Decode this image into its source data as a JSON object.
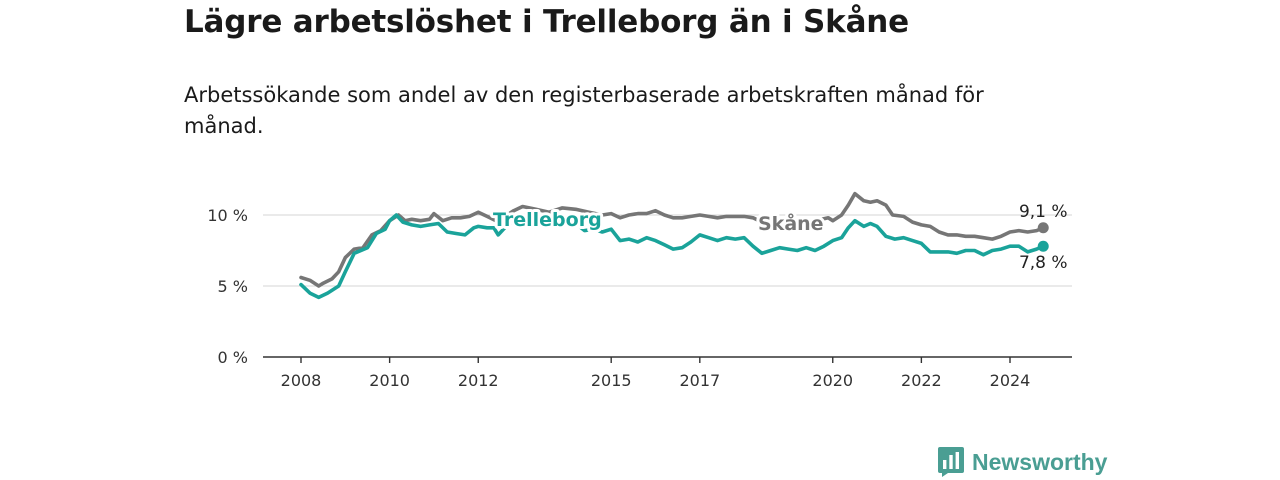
{
  "title": "Lägre arbetslöshet i Trelleborg än i Skåne",
  "subtitle": "Arbetssökande som andel av den registerbaserade arbetskraften månad för månad.",
  "brand": {
    "name": "Newsworthy",
    "color": "#4a9e93"
  },
  "chart_data": {
    "type": "line",
    "title": "Lägre arbetslöshet i Trelleborg än i Skåne",
    "xlabel": "",
    "ylabel": "",
    "xlim": [
      2008,
      2025
    ],
    "ylim": [
      0,
      10
    ],
    "grid": true,
    "y_ticks": [
      {
        "value": 0,
        "label": "0 %"
      },
      {
        "value": 5,
        "label": "5 %"
      },
      {
        "value": 10,
        "label": "10 %"
      }
    ],
    "x_ticks": [
      {
        "value": 2008,
        "label": "2008"
      },
      {
        "value": 2010,
        "label": "2010"
      },
      {
        "value": 2012,
        "label": "2012"
      },
      {
        "value": 2015,
        "label": "2015"
      },
      {
        "value": 2017,
        "label": "2017"
      },
      {
        "value": 2020,
        "label": "2020"
      },
      {
        "value": 2022,
        "label": "2022"
      },
      {
        "value": 2024,
        "label": "2024"
      }
    ],
    "series": [
      {
        "name": "Skåne",
        "label": "Skåne",
        "color": "#767676",
        "end_label": "9,1 %",
        "points": [
          [
            2008.0,
            5.6
          ],
          [
            2008.2,
            5.4
          ],
          [
            2008.4,
            5.0
          ],
          [
            2008.5,
            5.2
          ],
          [
            2008.7,
            5.5
          ],
          [
            2008.85,
            6.0
          ],
          [
            2009.0,
            7.0
          ],
          [
            2009.2,
            7.6
          ],
          [
            2009.4,
            7.7
          ],
          [
            2009.6,
            8.6
          ],
          [
            2009.8,
            8.9
          ],
          [
            2010.0,
            9.6
          ],
          [
            2010.2,
            10.0
          ],
          [
            2010.35,
            9.6
          ],
          [
            2010.5,
            9.7
          ],
          [
            2010.7,
            9.6
          ],
          [
            2010.9,
            9.7
          ],
          [
            2011.0,
            10.1
          ],
          [
            2011.2,
            9.6
          ],
          [
            2011.4,
            9.8
          ],
          [
            2011.6,
            9.8
          ],
          [
            2011.8,
            9.9
          ],
          [
            2012.0,
            10.2
          ],
          [
            2012.2,
            9.9
          ],
          [
            2012.4,
            9.6
          ],
          [
            2012.6,
            9.9
          ],
          [
            2012.8,
            10.3
          ],
          [
            2013.0,
            10.6
          ],
          [
            2013.3,
            10.4
          ],
          [
            2013.6,
            10.2
          ],
          [
            2013.9,
            10.5
          ],
          [
            2014.2,
            10.4
          ],
          [
            2014.5,
            10.2
          ],
          [
            2014.8,
            10.0
          ],
          [
            2015.0,
            10.1
          ],
          [
            2015.2,
            9.8
          ],
          [
            2015.4,
            10.0
          ],
          [
            2015.6,
            10.1
          ],
          [
            2015.8,
            10.1
          ],
          [
            2016.0,
            10.3
          ],
          [
            2016.2,
            10.0
          ],
          [
            2016.4,
            9.8
          ],
          [
            2016.6,
            9.8
          ],
          [
            2016.8,
            9.9
          ],
          [
            2017.0,
            10.0
          ],
          [
            2017.2,
            9.9
          ],
          [
            2017.4,
            9.8
          ],
          [
            2017.6,
            9.9
          ],
          [
            2017.8,
            9.9
          ],
          [
            2018.0,
            9.9
          ],
          [
            2018.2,
            9.8
          ],
          [
            2018.4,
            9.5
          ],
          [
            2018.6,
            9.4
          ],
          [
            2018.8,
            9.5
          ],
          [
            2019.0,
            9.5
          ],
          [
            2019.3,
            9.6
          ],
          [
            2019.6,
            9.6
          ],
          [
            2019.9,
            9.8
          ],
          [
            2020.0,
            9.6
          ],
          [
            2020.2,
            10.0
          ],
          [
            2020.35,
            10.7
          ],
          [
            2020.5,
            11.5
          ],
          [
            2020.7,
            11.0
          ],
          [
            2020.85,
            10.9
          ],
          [
            2021.0,
            11.0
          ],
          [
            2021.2,
            10.7
          ],
          [
            2021.35,
            10.0
          ],
          [
            2021.6,
            9.9
          ],
          [
            2021.8,
            9.5
          ],
          [
            2022.0,
            9.3
          ],
          [
            2022.2,
            9.2
          ],
          [
            2022.4,
            8.8
          ],
          [
            2022.6,
            8.6
          ],
          [
            2022.8,
            8.6
          ],
          [
            2023.0,
            8.5
          ],
          [
            2023.2,
            8.5
          ],
          [
            2023.4,
            8.4
          ],
          [
            2023.6,
            8.3
          ],
          [
            2023.8,
            8.5
          ],
          [
            2024.0,
            8.8
          ],
          [
            2024.2,
            8.9
          ],
          [
            2024.4,
            8.8
          ],
          [
            2024.6,
            8.9
          ],
          [
            2024.75,
            9.1
          ]
        ]
      },
      {
        "name": "Trelleborg",
        "label": "Trelleborg",
        "color": "#1aa39a",
        "end_label": "7,8 %",
        "points": [
          [
            2008.0,
            5.1
          ],
          [
            2008.2,
            4.5
          ],
          [
            2008.4,
            4.2
          ],
          [
            2008.6,
            4.5
          ],
          [
            2008.85,
            5.0
          ],
          [
            2009.0,
            6.0
          ],
          [
            2009.2,
            7.3
          ],
          [
            2009.5,
            7.7
          ],
          [
            2009.7,
            8.7
          ],
          [
            2009.9,
            9.0
          ],
          [
            2010.0,
            9.6
          ],
          [
            2010.15,
            10.0
          ],
          [
            2010.3,
            9.5
          ],
          [
            2010.5,
            9.3
          ],
          [
            2010.7,
            9.2
          ],
          [
            2010.9,
            9.3
          ],
          [
            2011.1,
            9.4
          ],
          [
            2011.3,
            8.8
          ],
          [
            2011.5,
            8.7
          ],
          [
            2011.7,
            8.6
          ],
          [
            2011.9,
            9.1
          ],
          [
            2012.0,
            9.2
          ],
          [
            2012.2,
            9.1
          ],
          [
            2012.35,
            9.1
          ],
          [
            2012.45,
            8.6
          ],
          [
            2012.6,
            9.1
          ],
          [
            2012.8,
            9.6
          ],
          [
            2013.0,
            10.0
          ],
          [
            2013.3,
            9.8
          ],
          [
            2013.6,
            9.5
          ],
          [
            2013.9,
            9.6
          ],
          [
            2014.2,
            9.4
          ],
          [
            2014.4,
            8.9
          ],
          [
            2014.6,
            9.0
          ],
          [
            2014.8,
            8.8
          ],
          [
            2015.0,
            9.0
          ],
          [
            2015.2,
            8.2
          ],
          [
            2015.4,
            8.3
          ],
          [
            2015.6,
            8.1
          ],
          [
            2015.8,
            8.4
          ],
          [
            2016.0,
            8.2
          ],
          [
            2016.2,
            7.9
          ],
          [
            2016.4,
            7.6
          ],
          [
            2016.6,
            7.7
          ],
          [
            2016.8,
            8.1
          ],
          [
            2017.0,
            8.6
          ],
          [
            2017.2,
            8.4
          ],
          [
            2017.4,
            8.2
          ],
          [
            2017.6,
            8.4
          ],
          [
            2017.8,
            8.3
          ],
          [
            2018.0,
            8.4
          ],
          [
            2018.2,
            7.8
          ],
          [
            2018.4,
            7.3
          ],
          [
            2018.6,
            7.5
          ],
          [
            2018.8,
            7.7
          ],
          [
            2019.0,
            7.6
          ],
          [
            2019.2,
            7.5
          ],
          [
            2019.4,
            7.7
          ],
          [
            2019.6,
            7.5
          ],
          [
            2019.8,
            7.8
          ],
          [
            2020.0,
            8.2
          ],
          [
            2020.2,
            8.4
          ],
          [
            2020.35,
            9.1
          ],
          [
            2020.5,
            9.6
          ],
          [
            2020.7,
            9.2
          ],
          [
            2020.85,
            9.4
          ],
          [
            2021.0,
            9.2
          ],
          [
            2021.2,
            8.5
          ],
          [
            2021.4,
            8.3
          ],
          [
            2021.6,
            8.4
          ],
          [
            2021.8,
            8.2
          ],
          [
            2022.0,
            8.0
          ],
          [
            2022.2,
            7.4
          ],
          [
            2022.4,
            7.4
          ],
          [
            2022.6,
            7.4
          ],
          [
            2022.8,
            7.3
          ],
          [
            2023.0,
            7.5
          ],
          [
            2023.2,
            7.5
          ],
          [
            2023.4,
            7.2
          ],
          [
            2023.6,
            7.5
          ],
          [
            2023.8,
            7.6
          ],
          [
            2024.0,
            7.8
          ],
          [
            2024.2,
            7.8
          ],
          [
            2024.4,
            7.4
          ],
          [
            2024.6,
            7.6
          ],
          [
            2024.75,
            7.8
          ]
        ]
      }
    ]
  }
}
